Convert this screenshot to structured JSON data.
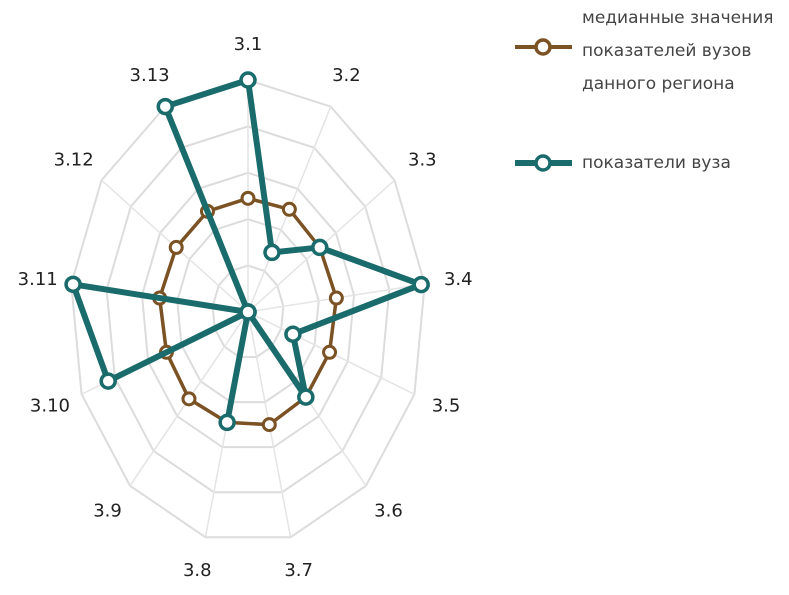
{
  "chart_data": {
    "type": "radar",
    "categories": [
      "3.1",
      "3.2",
      "3.3",
      "3.4",
      "3.5",
      "3.6",
      "3.7",
      "3.8",
      "3.9",
      "3.10",
      "3.11",
      "3.12",
      "3.13"
    ],
    "series": [
      {
        "name": "медианные значения показателей вузов данного региона",
        "color": "#7a5223",
        "values": [
          2.45,
          2.5,
          2.45,
          2.5,
          2.45,
          2.45,
          2.5,
          2.45,
          2.5,
          2.45,
          2.5,
          2.45,
          2.45
        ]
      },
      {
        "name": "показатели вуза",
        "color": "#1a6b6b",
        "values": [
          5.0,
          1.45,
          2.45,
          4.9,
          1.35,
          2.45,
          0,
          2.45,
          0,
          4.2,
          4.95,
          0,
          5.0
        ]
      }
    ],
    "ylim": [
      0,
      5
    ],
    "yticks": [
      1,
      2,
      3,
      4,
      5
    ],
    "grid": true
  }
}
